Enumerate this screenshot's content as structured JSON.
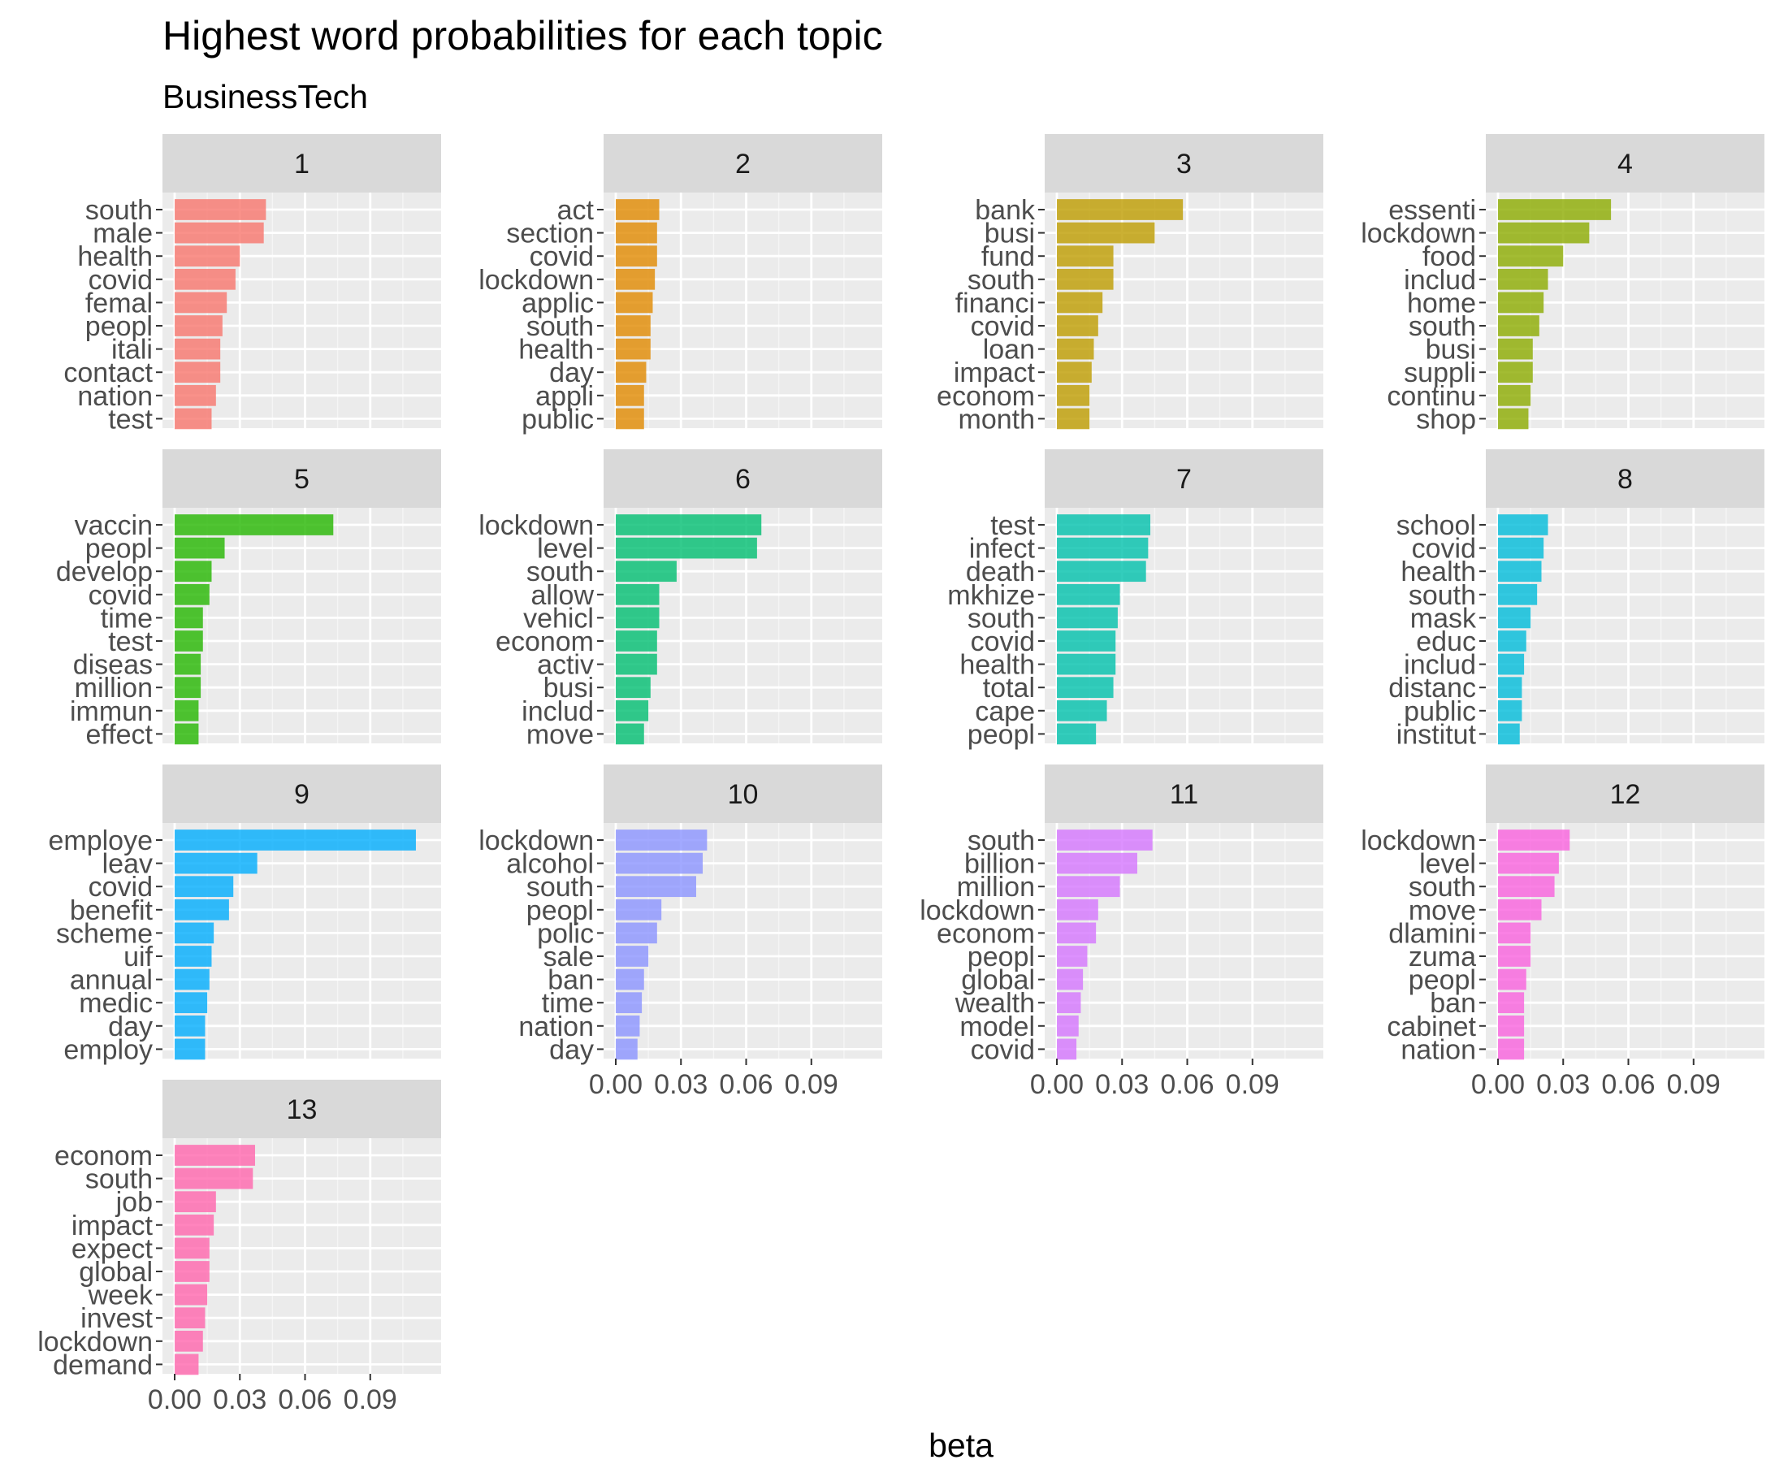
{
  "chart_data": {
    "type": "bar",
    "orientation": "horizontal",
    "title": "Highest word probabilities for each topic",
    "subtitle": "BusinessTech",
    "xlabel": "beta",
    "ylabel": "",
    "xlim": [
      0,
      0.117
    ],
    "xticks": [
      0.0,
      0.03,
      0.06,
      0.09
    ],
    "xtick_labels": [
      "0.00",
      "0.03",
      "0.06",
      "0.09"
    ],
    "grid": true,
    "facets": [
      {
        "topic": "1",
        "color": "#F8766D",
        "terms": [
          "south",
          "male",
          "health",
          "covid",
          "femal",
          "peopl",
          "itali",
          "contact",
          "nation",
          "test"
        ],
        "values": [
          0.042,
          0.041,
          0.03,
          0.028,
          0.024,
          0.022,
          0.021,
          0.021,
          0.019,
          0.017
        ]
      },
      {
        "topic": "2",
        "color": "#E18A00",
        "terms": [
          "act",
          "section",
          "covid",
          "lockdown",
          "applic",
          "south",
          "health",
          "day",
          "appli",
          "public"
        ],
        "values": [
          0.02,
          0.019,
          0.019,
          0.018,
          0.017,
          0.016,
          0.016,
          0.014,
          0.013,
          0.013
        ]
      },
      {
        "topic": "3",
        "color": "#BE9C00",
        "terms": [
          "bank",
          "busi",
          "fund",
          "south",
          "financi",
          "covid",
          "loan",
          "impact",
          "econom",
          "month"
        ],
        "values": [
          0.058,
          0.045,
          0.026,
          0.026,
          0.021,
          0.019,
          0.017,
          0.016,
          0.015,
          0.015
        ]
      },
      {
        "topic": "4",
        "color": "#8CAB00",
        "terms": [
          "essenti",
          "lockdown",
          "food",
          "includ",
          "home",
          "south",
          "busi",
          "suppli",
          "continu",
          "shop"
        ],
        "values": [
          0.052,
          0.042,
          0.03,
          0.023,
          0.021,
          0.019,
          0.016,
          0.016,
          0.015,
          0.014
        ]
      },
      {
        "topic": "5",
        "color": "#24B700",
        "terms": [
          "vaccin",
          "peopl",
          "develop",
          "covid",
          "time",
          "test",
          "diseas",
          "million",
          "immun",
          "effect"
        ],
        "values": [
          0.073,
          0.023,
          0.017,
          0.016,
          0.013,
          0.013,
          0.012,
          0.012,
          0.011,
          0.011
        ]
      },
      {
        "topic": "6",
        "color": "#00BE70",
        "terms": [
          "lockdown",
          "level",
          "south",
          "allow",
          "vehicl",
          "econom",
          "activ",
          "busi",
          "includ",
          "move"
        ],
        "values": [
          0.067,
          0.065,
          0.028,
          0.02,
          0.02,
          0.019,
          0.019,
          0.016,
          0.015,
          0.013
        ]
      },
      {
        "topic": "7",
        "color": "#00C1AB",
        "terms": [
          "test",
          "infect",
          "death",
          "mkhize",
          "south",
          "covid",
          "health",
          "total",
          "cape",
          "peopl"
        ],
        "values": [
          0.043,
          0.042,
          0.041,
          0.029,
          0.028,
          0.027,
          0.027,
          0.026,
          0.023,
          0.018
        ]
      },
      {
        "topic": "8",
        "color": "#00BBDA",
        "terms": [
          "school",
          "covid",
          "health",
          "south",
          "mask",
          "educ",
          "includ",
          "distanc",
          "public",
          "institut"
        ],
        "values": [
          0.023,
          0.021,
          0.02,
          0.018,
          0.015,
          0.013,
          0.012,
          0.011,
          0.011,
          0.01
        ]
      },
      {
        "topic": "9",
        "color": "#00ACFC",
        "terms": [
          "employe",
          "leav",
          "covid",
          "benefit",
          "scheme",
          "uif",
          "annual",
          "medic",
          "day",
          "employ"
        ],
        "values": [
          0.111,
          0.038,
          0.027,
          0.025,
          0.018,
          0.017,
          0.016,
          0.015,
          0.014,
          0.014
        ]
      },
      {
        "topic": "10",
        "color": "#8B93FF",
        "terms": [
          "lockdown",
          "alcohol",
          "south",
          "peopl",
          "polic",
          "sale",
          "ban",
          "time",
          "nation",
          "day"
        ],
        "values": [
          0.042,
          0.04,
          0.037,
          0.021,
          0.019,
          0.015,
          0.013,
          0.012,
          0.011,
          0.01
        ]
      },
      {
        "topic": "11",
        "color": "#D575FE",
        "terms": [
          "south",
          "billion",
          "million",
          "lockdown",
          "econom",
          "peopl",
          "global",
          "wealth",
          "model",
          "covid"
        ],
        "values": [
          0.044,
          0.037,
          0.029,
          0.019,
          0.018,
          0.014,
          0.012,
          0.011,
          0.01,
          0.009
        ]
      },
      {
        "topic": "12",
        "color": "#F962DD",
        "terms": [
          "lockdown",
          "level",
          "south",
          "move",
          "dlamini",
          "zuma",
          "peopl",
          "ban",
          "cabinet",
          "nation"
        ],
        "values": [
          0.033,
          0.028,
          0.026,
          0.02,
          0.015,
          0.015,
          0.013,
          0.012,
          0.012,
          0.012
        ]
      },
      {
        "topic": "13",
        "color": "#FF65AC",
        "terms": [
          "econom",
          "south",
          "job",
          "impact",
          "expect",
          "global",
          "week",
          "invest",
          "lockdown",
          "demand"
        ],
        "values": [
          0.037,
          0.036,
          0.019,
          0.018,
          0.016,
          0.016,
          0.015,
          0.014,
          0.013,
          0.011
        ]
      }
    ]
  }
}
